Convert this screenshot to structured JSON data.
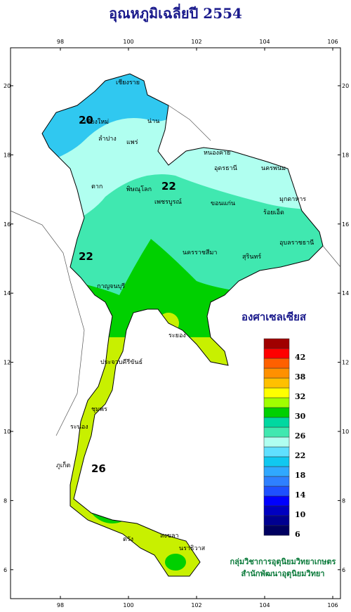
{
  "title": "อุณหภูมิเฉลี่ยปี 2554",
  "axes": {
    "lon_ticks": [
      98,
      100,
      102,
      104,
      106
    ],
    "lat_ticks": [
      20,
      18,
      16,
      14,
      12,
      10,
      8,
      6
    ]
  },
  "contour_labels": [
    "20",
    "22",
    "22",
    "26"
  ],
  "places": [
    "เชียงราย",
    "เชียงใหม่",
    "น่าน",
    "ลำปาง",
    "แพร่",
    "ตาก",
    "พิษณุโลก",
    "เพชรบูรณ์",
    "หนองคาย",
    "อุดรธานี",
    "นครพนม",
    "ขอนแก่น",
    "มุกดาหาร",
    "ร้อยเอ็ด",
    "อุบลราชธานี",
    "นครราชสีมา",
    "สุรินทร์",
    "กาญจนบุรี",
    "ระยอง",
    "ประจวบคีรีขันธ์",
    "ชุมพร",
    "ระนอง",
    "ภูเก็ต",
    "ตรัง",
    "สงขลา",
    "นราธิวาส"
  ],
  "legend": {
    "unit": "องศาเซลเซียส",
    "labels": [
      "6",
      "10",
      "14",
      "18",
      "22",
      "26",
      "30",
      "32",
      "38",
      "42"
    ],
    "colors": [
      "#000060",
      "#000090",
      "#0000c0",
      "#0000ff",
      "#1e50ff",
      "#2e80ff",
      "#30a8ff",
      "#10c8f0",
      "#60e0ff",
      "#b0fff0",
      "#40e8b0",
      "#00d8a0",
      "#00d000",
      "#a0ff00",
      "#ffff00",
      "#ffc000",
      "#ff9000",
      "#ff6000",
      "#ff0000",
      "#a00000"
    ]
  },
  "credit": [
    "กลุ่มวิชาการอุตุนิยมวิทยาเกษตร",
    "สำนักพัฒนาอุตุนิยมวิทยา"
  ]
}
